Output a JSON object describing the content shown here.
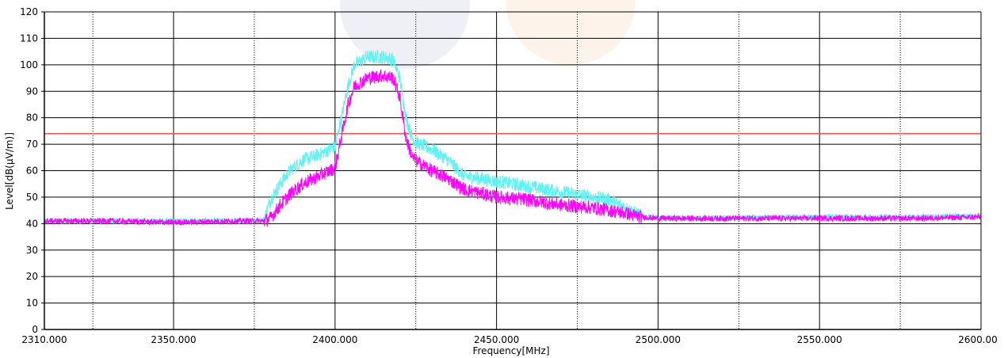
{
  "chart_data": {
    "type": "line",
    "xlabel": "Frequency[MHz]",
    "ylabel": "Level[dB(μV/m)]",
    "xlim": [
      2310,
      2600
    ],
    "ylim": [
      0,
      120
    ],
    "x_tick_labels": [
      "2310.000",
      "2350.000",
      "2400.000",
      "2450.000",
      "2500.000",
      "2550.000",
      "2600.00"
    ],
    "x_tick_values": [
      2310,
      2350,
      2400,
      2450,
      2500,
      2550,
      2600
    ],
    "x_minor_gridlines": [
      2325,
      2375,
      2425,
      2475,
      2525,
      2575
    ],
    "y_tick_labels": [
      "0",
      "10",
      "20",
      "30",
      "40",
      "50",
      "60",
      "70",
      "80",
      "90",
      "100",
      "110",
      "120"
    ],
    "y_tick_values": [
      0,
      10,
      20,
      30,
      40,
      50,
      60,
      70,
      80,
      90,
      100,
      110,
      120
    ],
    "grid": true,
    "limit_line": {
      "y": 74,
      "color": "#ff4d4d"
    },
    "series": [
      {
        "color": "#5ef2f2",
        "x": [
          2310,
          2330,
          2350,
          2370,
          2378,
          2380,
          2383,
          2386,
          2390,
          2395,
          2400,
          2402,
          2404,
          2406,
          2410,
          2415,
          2418,
          2420,
          2422,
          2424,
          2426,
          2430,
          2435,
          2440,
          2450,
          2460,
          2470,
          2480,
          2485,
          2490,
          2493,
          2495,
          2500,
          2520,
          2550,
          2580,
          2600
        ],
        "y": [
          41,
          41,
          41,
          41,
          41.5,
          49,
          55,
          60,
          64,
          66,
          69,
          80,
          92,
          100,
          103,
          103,
          102,
          95,
          80,
          72,
          70,
          68,
          64,
          58,
          56,
          54,
          52,
          50,
          49,
          46,
          44,
          43,
          42,
          42,
          42.5,
          42.5,
          43
        ]
      },
      {
        "color": "#ff00ff",
        "x": [
          2310,
          2330,
          2350,
          2370,
          2378,
          2380,
          2383,
          2386,
          2390,
          2395,
          2400,
          2402,
          2404,
          2406,
          2410,
          2415,
          2418,
          2420,
          2422,
          2424,
          2426,
          2430,
          2435,
          2440,
          2450,
          2460,
          2470,
          2480,
          2485,
          2490,
          2493,
          2495,
          2500,
          2520,
          2550,
          2580,
          2600
        ],
        "y": [
          41,
          41,
          40.5,
          41,
          41,
          42,
          47,
          51,
          55,
          58,
          61,
          73,
          85,
          92,
          95,
          96,
          95,
          88,
          72,
          65,
          63,
          60,
          57,
          53,
          50,
          49,
          47,
          46,
          45,
          44,
          43,
          42.5,
          42,
          42,
          42,
          42,
          42.5
        ]
      }
    ]
  }
}
